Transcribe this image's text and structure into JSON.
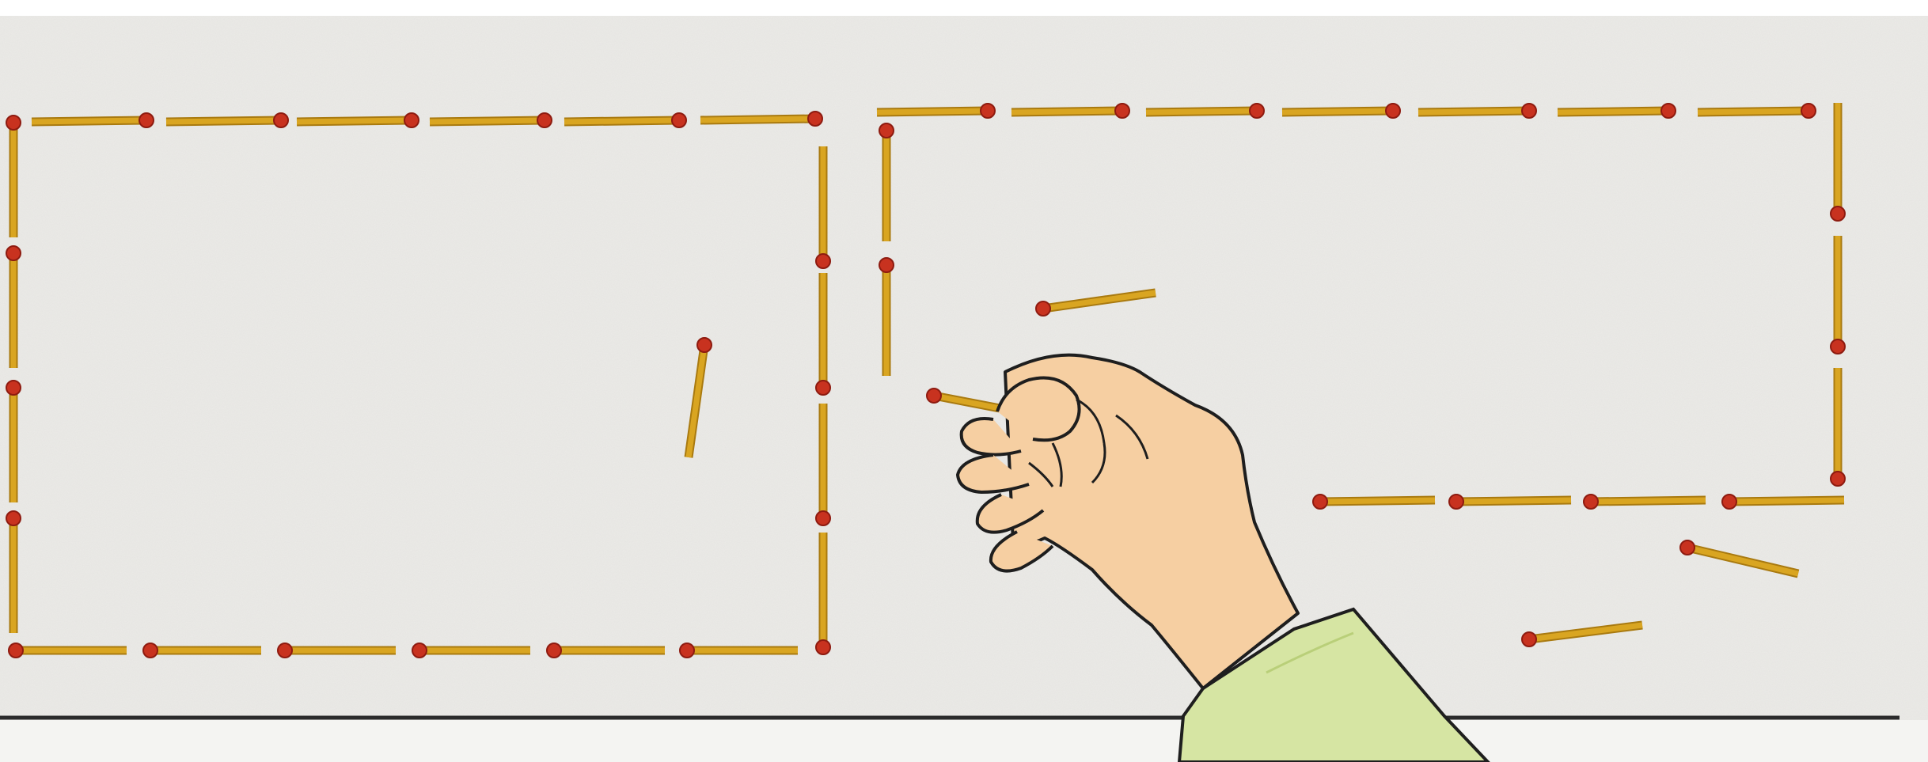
{
  "scene": {
    "description_free": true,
    "colors": {
      "paper": "#ecebe8",
      "paper_speckle": "#d6d5d1",
      "match_stick": "#d9a521",
      "match_stick_edge": "#a97a10",
      "match_head": "#c8321f",
      "match_head_dark": "#8e1b10",
      "skin": "#f6cfa2",
      "skin_shade": "#e9ad7a",
      "outline": "#1e1e1e",
      "sleeve": "#d6e5a3",
      "sleeve_shade": "#b9cf79",
      "table_edge": "#2b2b2b"
    },
    "icons": {
      "matchstick": "matchstick-icon",
      "hand": "hand-icon"
    },
    "left_rectangle_match_count": 20,
    "right_rectangle_match_count": 17,
    "loose_match_count": 5
  }
}
